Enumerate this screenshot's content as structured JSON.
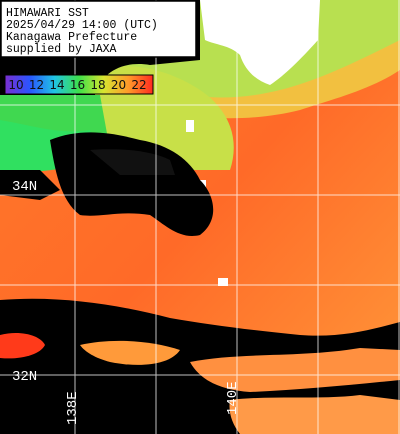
{
  "header": {
    "lines": [
      "HIMAWARI SST",
      "2025/04/29 14:00 (UTC)",
      "Kanagawa Prefecture",
      "supplied by JAXA"
    ]
  },
  "color_scale": {
    "values": [
      10,
      12,
      14,
      16,
      18,
      20,
      22
    ],
    "colors": [
      "#7a2fd0",
      "#2a55ff",
      "#20c4e4",
      "#3ee04a",
      "#d8e430",
      "#ff9a2a",
      "#ff2a20"
    ]
  },
  "grid_labels": {
    "latitudes": [
      "34N",
      "32N"
    ],
    "longitudes": [
      "138E",
      "140E"
    ]
  }
}
